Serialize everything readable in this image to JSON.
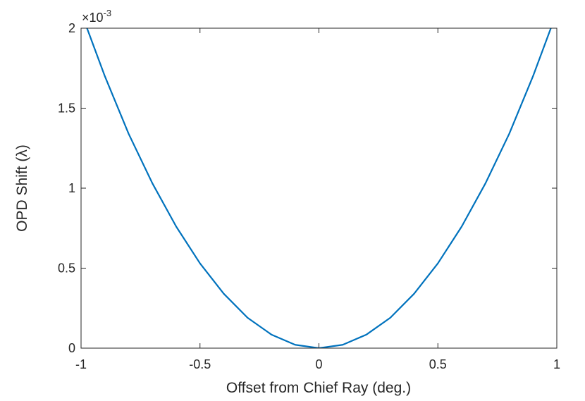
{
  "chart_data": {
    "type": "line",
    "title": "",
    "xlabel": "Offset from Chief Ray (deg.)",
    "ylabel": "OPD Shift (λ)",
    "xlim": [
      -1,
      1
    ],
    "ylim": [
      0,
      0.002
    ],
    "y_exponent": {
      "base": "10",
      "power": "-3",
      "times": "×"
    },
    "x_ticks": [
      -1,
      -0.5,
      0,
      0.5,
      1
    ],
    "x_tick_labels": [
      "-1",
      "-0.5",
      "0",
      "0.5",
      "1"
    ],
    "y_ticks": [
      0,
      0.0005,
      0.001,
      0.0015,
      0.002
    ],
    "y_tick_labels": [
      "0",
      "0.5",
      "1",
      "1.5",
      "2"
    ],
    "grid": false,
    "legend": null,
    "line_color": "#0072bd",
    "axis_color": "#262626",
    "series": [
      {
        "x": [
          -1.0,
          -0.9,
          -0.8,
          -0.7,
          -0.6,
          -0.5,
          -0.4,
          -0.3,
          -0.2,
          -0.1,
          0.0,
          0.1,
          0.2,
          0.3,
          0.4,
          0.5,
          0.6,
          0.7,
          0.8,
          0.9,
          1.0
        ],
        "values": [
          0.0021,
          0.0017,
          0.00134,
          0.00103,
          0.00076,
          0.00053,
          0.00034,
          0.00019,
          8.5e-05,
          2.1e-05,
          0.0,
          2.1e-05,
          8.5e-05,
          0.00019,
          0.00034,
          0.00053,
          0.00076,
          0.00103,
          0.00134,
          0.0017,
          0.0021
        ]
      }
    ]
  }
}
